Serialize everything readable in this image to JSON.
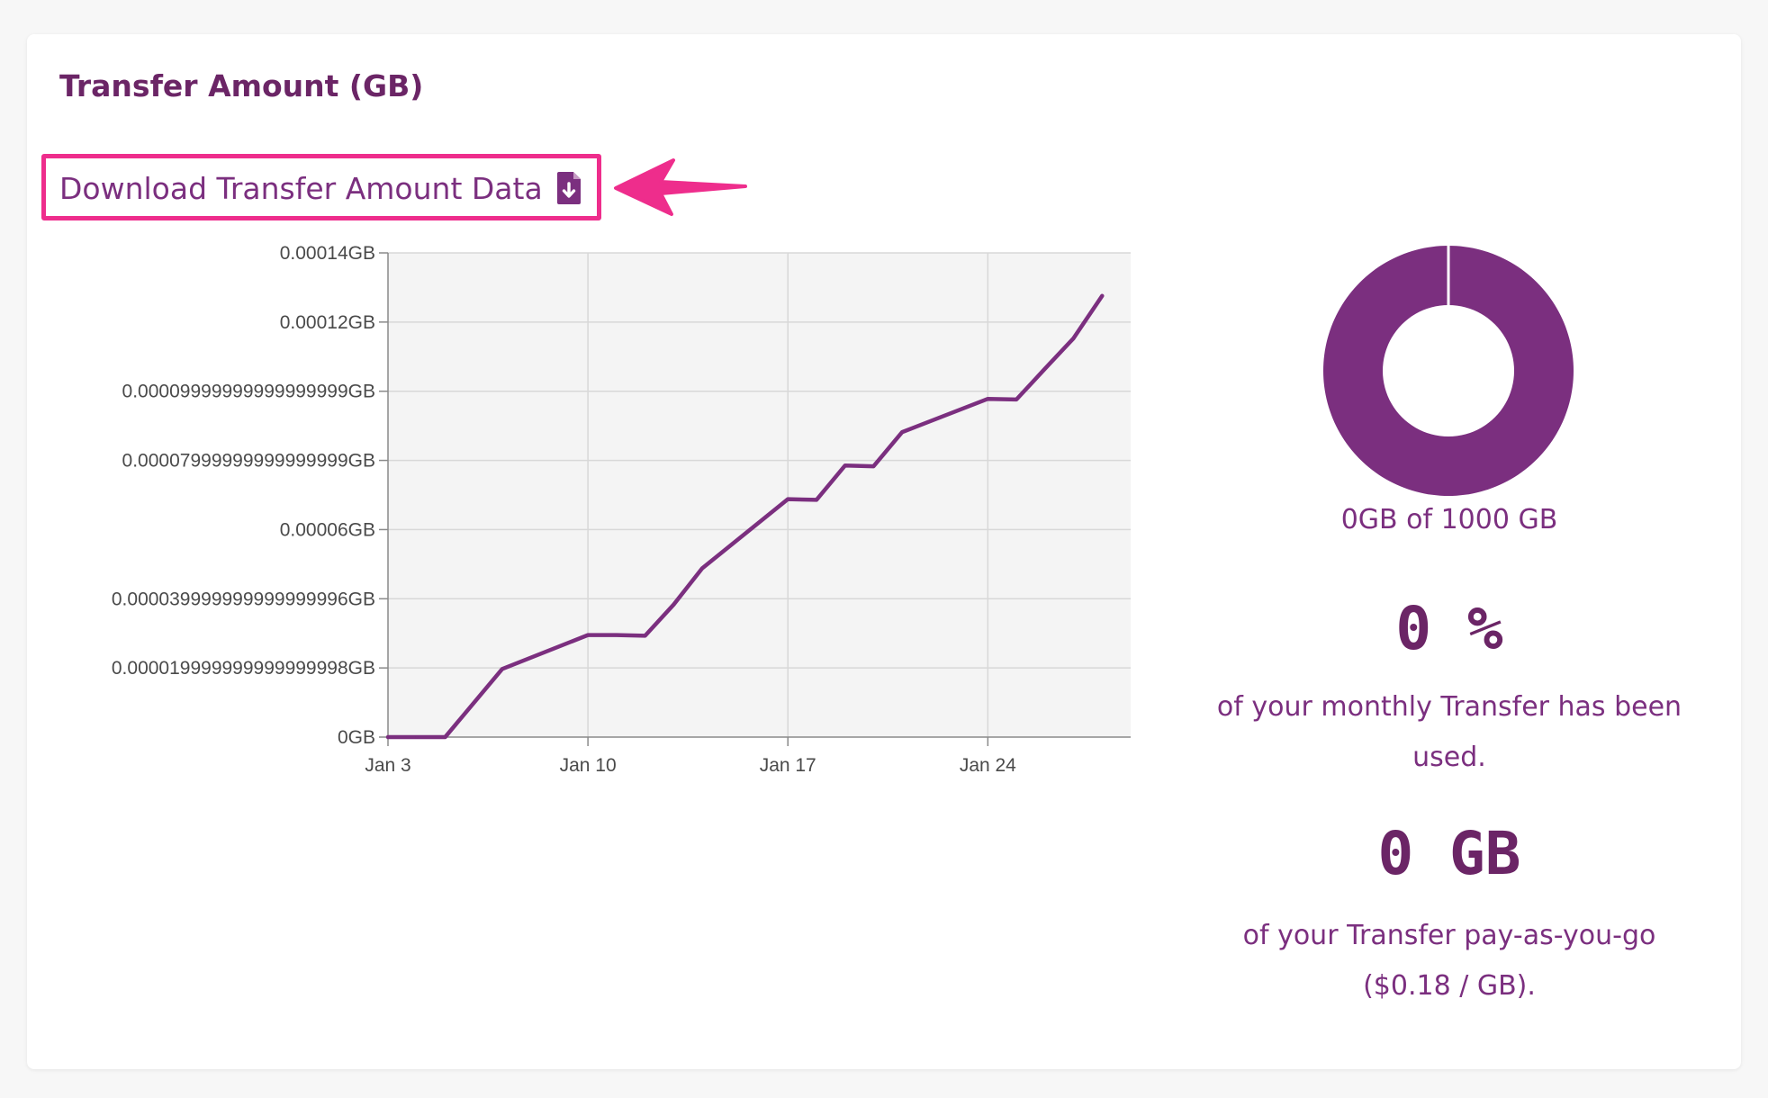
{
  "card": {
    "title": "Transfer Amount (GB)",
    "download_label": "Download Transfer Amount Data",
    "download_icon": "file-download-icon"
  },
  "annotation": {
    "highlight_color": "#ee2d8c",
    "arrow_icon": "arrow-left-icon"
  },
  "chart_data": {
    "type": "line",
    "ylim": [
      0,
      0.00014
    ],
    "y_ticks": [
      "0GB",
      "0.000019999999999999998GB",
      "0.000039999999999999996GB",
      "0.00006GB",
      "0.00007999999999999999GB",
      "0.00009999999999999999GB",
      "0.00012GB",
      "0.00014GB"
    ],
    "x_ticks": [
      "Jan 3",
      "Jan 10",
      "Jan 17",
      "Jan 24"
    ],
    "xlim": [
      "2024-01-03",
      "2024-01-29"
    ],
    "series": [
      {
        "color": "#7b2f7f",
        "points": [
          [
            "2024-01-03",
            0
          ],
          [
            "2024-01-04",
            0
          ],
          [
            "2024-01-05",
            0
          ],
          [
            "2024-01-07",
            1.97e-05
          ],
          [
            "2024-01-10",
            2.95e-05
          ],
          [
            "2024-01-11",
            2.95e-05
          ],
          [
            "2024-01-12",
            2.93e-05
          ],
          [
            "2024-01-13",
            3.83e-05
          ],
          [
            "2024-01-14",
            4.88e-05
          ],
          [
            "2024-01-17",
            6.88e-05
          ],
          [
            "2024-01-18",
            6.86e-05
          ],
          [
            "2024-01-19",
            7.85e-05
          ],
          [
            "2024-01-20",
            7.83e-05
          ],
          [
            "2024-01-21",
            8.82e-05
          ],
          [
            "2024-01-24",
            9.78e-05
          ],
          [
            "2024-01-25",
            9.76e-05
          ],
          [
            "2024-01-26",
            0.0001065
          ],
          [
            "2024-01-27",
            0.0001153
          ],
          [
            "2024-01-28",
            0.0001276
          ]
        ]
      }
    ],
    "grid": true,
    "plot_background": "#f4f4f4"
  },
  "usage": {
    "donut_color": "#7b2f7f",
    "donut_fraction": 0,
    "donut_caption": "0GB of 1000 GB",
    "percent_value": "0 %",
    "percent_desc": "of your monthly Transfer has been used.",
    "payg_value": "0 GB",
    "payg_desc": "of your Transfer pay-as-you-go ($0.18 / GB)."
  }
}
